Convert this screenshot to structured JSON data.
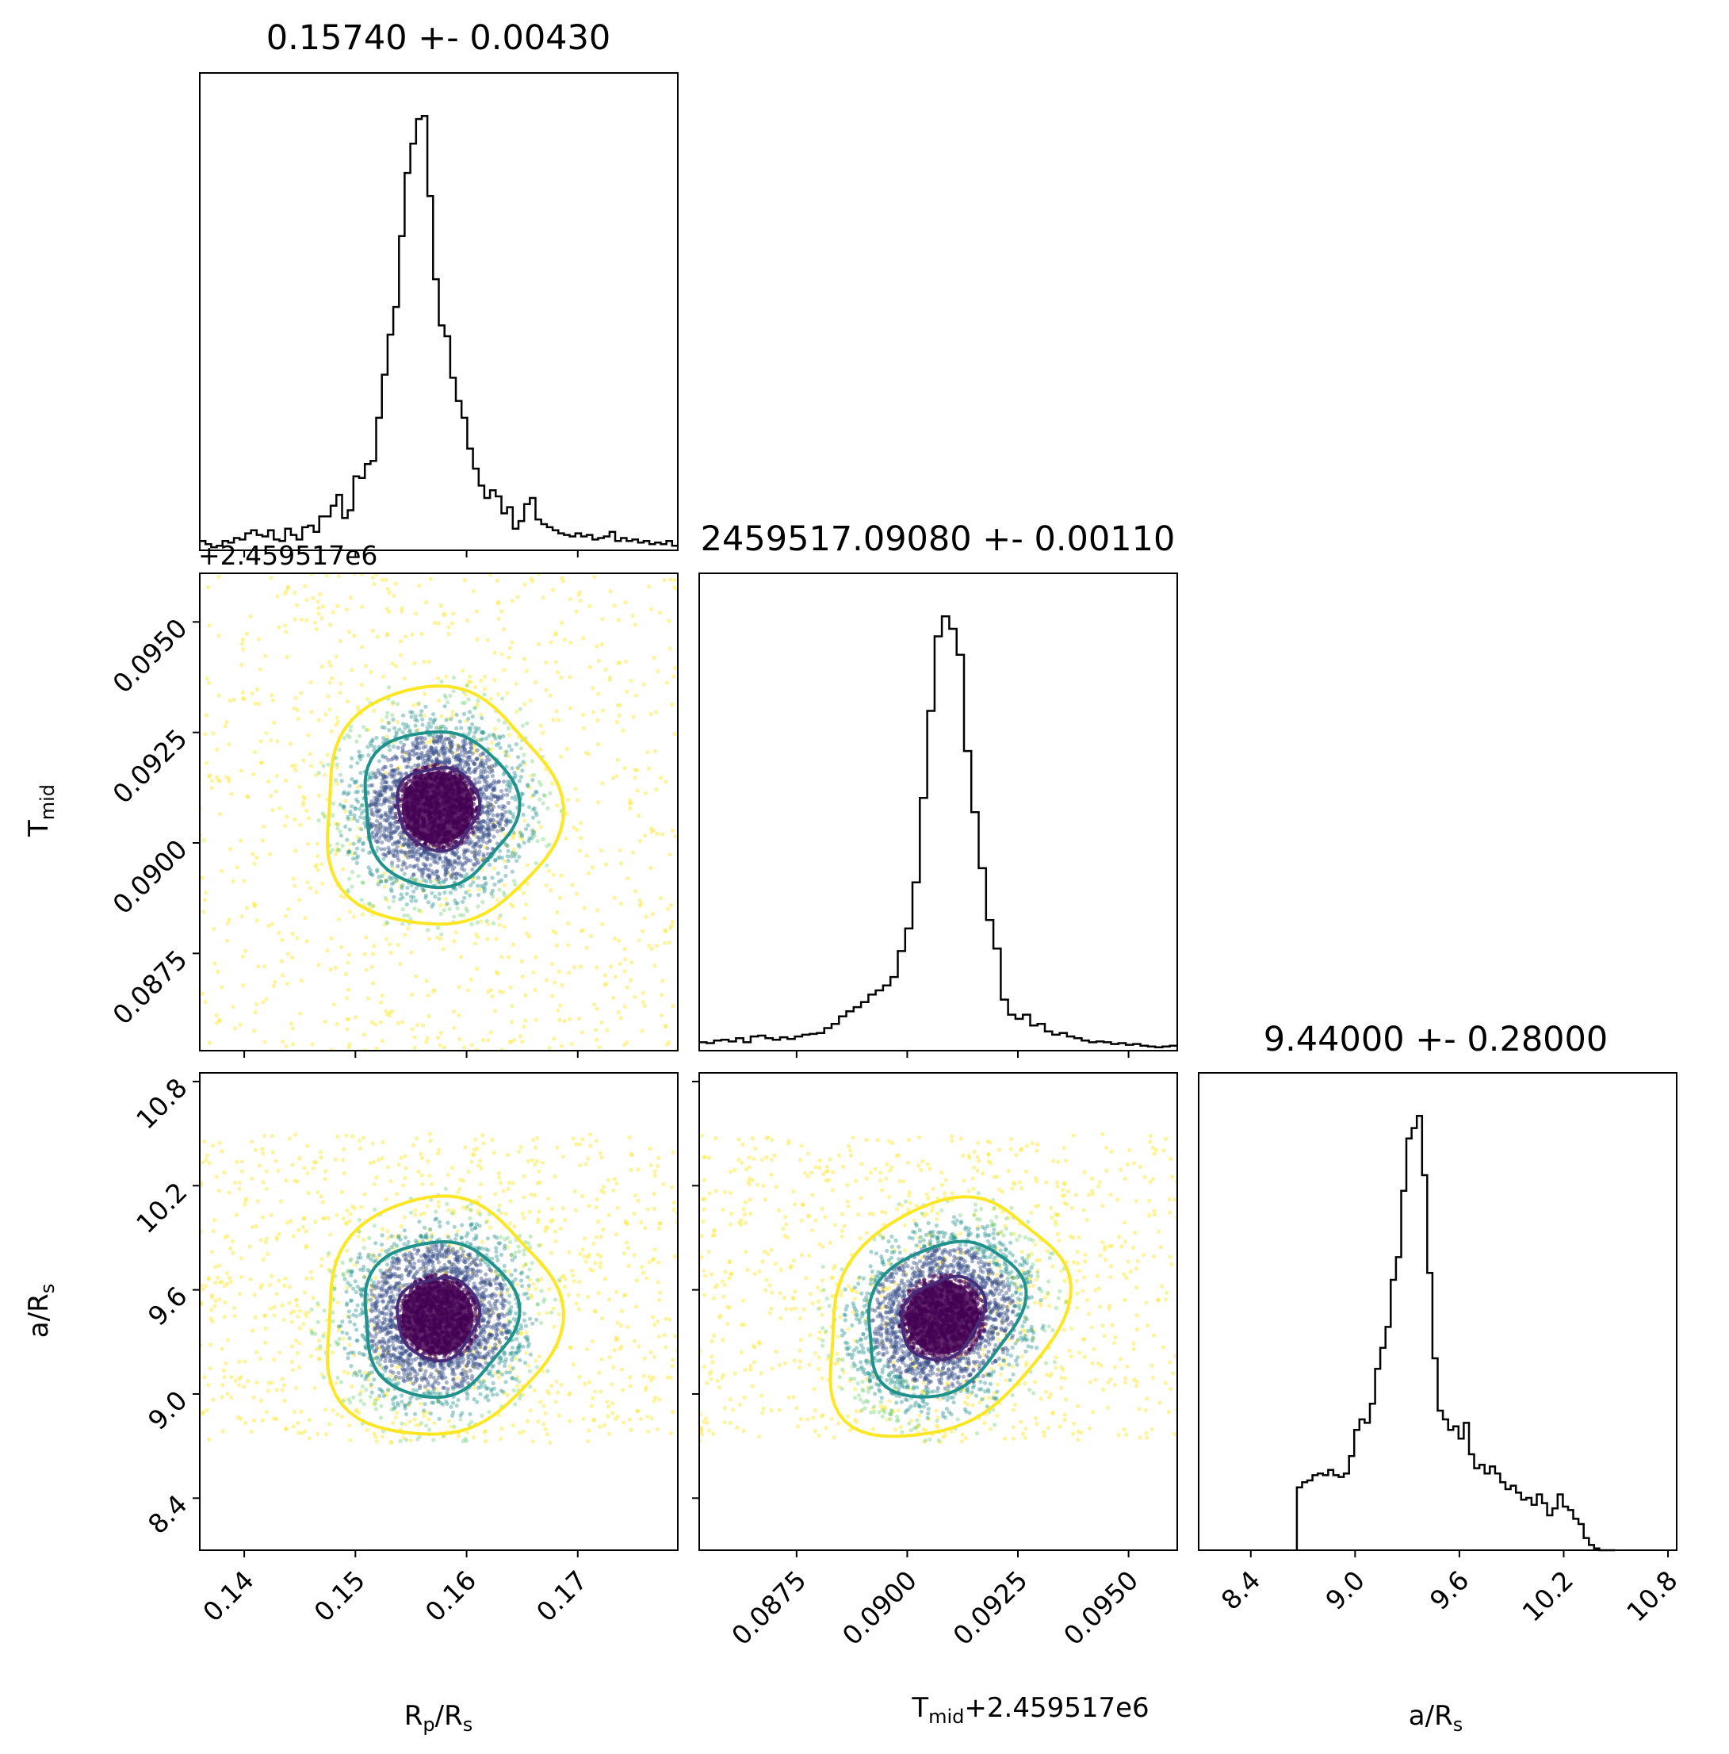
{
  "colors": {
    "hist_line": "#000000",
    "level_inner": "#472c7a",
    "level_mid": "#21918c",
    "level_outer": "#fde725",
    "scatter_palette": [
      "#440154",
      "#3b528b",
      "#21918c",
      "#5ec962",
      "#fde725"
    ]
  },
  "panel_titles": {
    "rp": "0.15740 +- 0.00430",
    "tmid": "2459517.09080 +- 0.00110",
    "ars": "9.44000 +- 0.28000"
  },
  "axis_labels": {
    "rp_main": "R",
    "rp_sub": "p",
    "rp_mid": "/R",
    "rp_sub2": "s",
    "tmid_main": "T",
    "tmid_sub": "mid",
    "tmid_offset": "+2.459517e6",
    "ars_main": "a/R",
    "ars_sub": "s"
  },
  "chart_data": {
    "type": "corner",
    "grid": false,
    "parameters": [
      {
        "key": "rp",
        "range": [
          0.136,
          0.179
        ],
        "ticks": [
          "0.14",
          "0.15",
          "0.16",
          "0.17"
        ],
        "tick_values": [
          0.14,
          0.15,
          0.16,
          0.17
        ],
        "median": 0.1574,
        "sigma": 0.0043,
        "hist_counts": [
          6,
          4,
          2,
          3,
          6,
          5,
          8,
          7,
          11,
          13,
          10,
          9,
          13,
          7,
          6,
          14,
          10,
          7,
          15,
          16,
          12,
          22,
          22,
          29,
          36,
          21,
          26,
          48,
          47,
          56,
          58,
          86,
          114,
          140,
          158,
          204,
          245,
          264,
          280,
          282,
          230,
          176,
          146,
          139,
          112,
          97,
          86,
          66,
          53,
          42,
          34,
          39,
          35,
          24,
          28,
          14,
          19,
          30,
          34,
          20,
          17,
          15,
          13,
          11,
          10,
          9,
          11,
          9,
          10,
          7,
          8,
          9,
          12,
          6,
          8,
          6,
          7,
          5,
          6,
          4,
          5,
          4,
          6,
          3
        ]
      },
      {
        "key": "tmid",
        "offset": 2459517,
        "range": [
          0.0853,
          0.0961
        ],
        "ticks": [
          "0.0875",
          "0.0900",
          "0.0925",
          "0.0950"
        ],
        "tick_values": [
          0.0875,
          0.09,
          0.0925,
          0.095
        ],
        "median": 0.0908,
        "sigma": 0.0011,
        "hist_counts": [
          10,
          9,
          12,
          13,
          11,
          15,
          10,
          17,
          18,
          15,
          13,
          16,
          14,
          17,
          19,
          20,
          21,
          27,
          32,
          41,
          47,
          52,
          58,
          67,
          72,
          78,
          88,
          119,
          146,
          201,
          302,
          406,
          495,
          519,
          504,
          473,
          358,
          285,
          218,
          156,
          122,
          61,
          43,
          38,
          43,
          30,
          32,
          23,
          19,
          21,
          17,
          15,
          12,
          10,
          11,
          10,
          8,
          9,
          7,
          8,
          6,
          5,
          4,
          5,
          6
        ]
      },
      {
        "key": "ars",
        "range": [
          8.1,
          10.85
        ],
        "ticks": [
          "8.4",
          "9.0",
          "9.6",
          "10.2",
          "10.8"
        ],
        "tick_values": [
          8.4,
          9.0,
          9.6,
          10.2,
          10.8
        ],
        "median": 9.44,
        "sigma": 0.28,
        "hist_bins": [
          8.665,
          10.495
        ],
        "hist_counts": [
          36,
          39,
          40,
          43,
          44,
          43,
          46,
          43,
          42,
          44,
          54,
          69,
          75,
          73,
          84,
          104,
          116,
          128,
          155,
          168,
          206,
          236,
          242,
          249,
          215,
          159,
          110,
          80,
          75,
          69,
          71,
          64,
          73,
          55,
          47,
          49,
          44,
          48,
          44,
          39,
          35,
          37,
          33,
          29,
          30,
          26,
          32,
          27,
          20,
          24,
          32,
          25,
          23,
          18,
          15,
          7,
          3,
          1,
          0,
          0,
          0
        ]
      }
    ],
    "pairs": [
      {
        "x": "rp",
        "y": "tmid",
        "rho": 0.0
      },
      {
        "x": "rp",
        "y": "ars",
        "rho": 0.05
      },
      {
        "x": "tmid",
        "y": "ars",
        "rho": 0.25
      }
    ],
    "contour_levels": [
      "inner",
      "middle",
      "outer"
    ]
  }
}
